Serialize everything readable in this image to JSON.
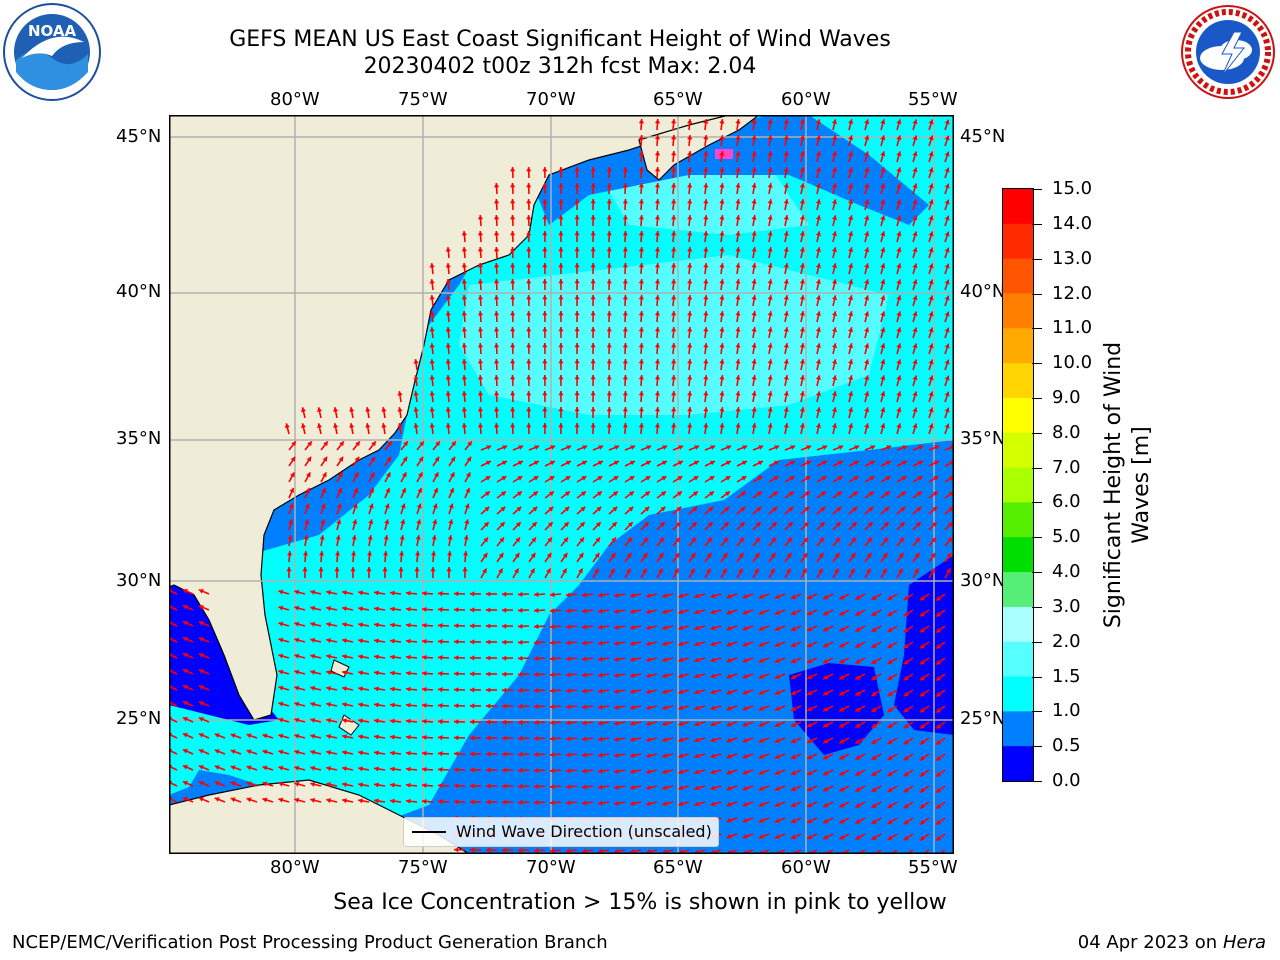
{
  "title": {
    "line1": "GEFS MEAN US East Coast Significant Height of Wind Waves",
    "line2": "20230402 t00z 312h fcst   Max: 2.04"
  },
  "logos": {
    "left": {
      "name": "noaa-logo",
      "text": "NOAA",
      "ring_text": "NATIONAL OCEANIC AND ATMOSPHERIC ADMINISTRATION · U.S. DEPARTMENT OF COMMERCE"
    },
    "right": {
      "name": "nws-logo",
      "ring_text": "NATIONAL WEATHER SERVICE"
    }
  },
  "map": {
    "lon_labels": [
      "80°W",
      "75°W",
      "70°W",
      "65°W",
      "60°W",
      "55°W"
    ],
    "lat_labels": [
      "45°N",
      "40°N",
      "35°N",
      "30°N",
      "25°N"
    ],
    "land_color": "#efedd8",
    "grid_color": "#b0b0b0",
    "arrow_color": "#ff0000",
    "legend_label": "Wind Wave Direction (unscaled)"
  },
  "colorbar": {
    "label_line1": "Significant Height of Wind",
    "label_line2": "Waves [m]",
    "ticks": [
      "15.0",
      "14.0",
      "13.0",
      "12.0",
      "11.0",
      "10.0",
      "9.0",
      "8.0",
      "7.0",
      "6.0",
      "5.0",
      "4.0",
      "3.0",
      "2.0",
      "1.5",
      "1.0",
      "0.5",
      "0.0"
    ],
    "colors": [
      "#ff0000",
      "#ff2a00",
      "#ff5500",
      "#ff8000",
      "#ffaa00",
      "#ffd400",
      "#ffff00",
      "#d4ff00",
      "#aaff00",
      "#55ee00",
      "#00dd00",
      "#55ee77",
      "#aaffff",
      "#55ffff",
      "#00ffff",
      "#0080ff",
      "#0000ff"
    ]
  },
  "caption": "Sea Ice Concentration > 15% is shown in pink to yellow",
  "footer": {
    "left": "NCEP/EMC/Verification Post Processing Product Generation Branch",
    "right_date": "04 Apr 2023 on ",
    "right_host": "Hera"
  }
}
